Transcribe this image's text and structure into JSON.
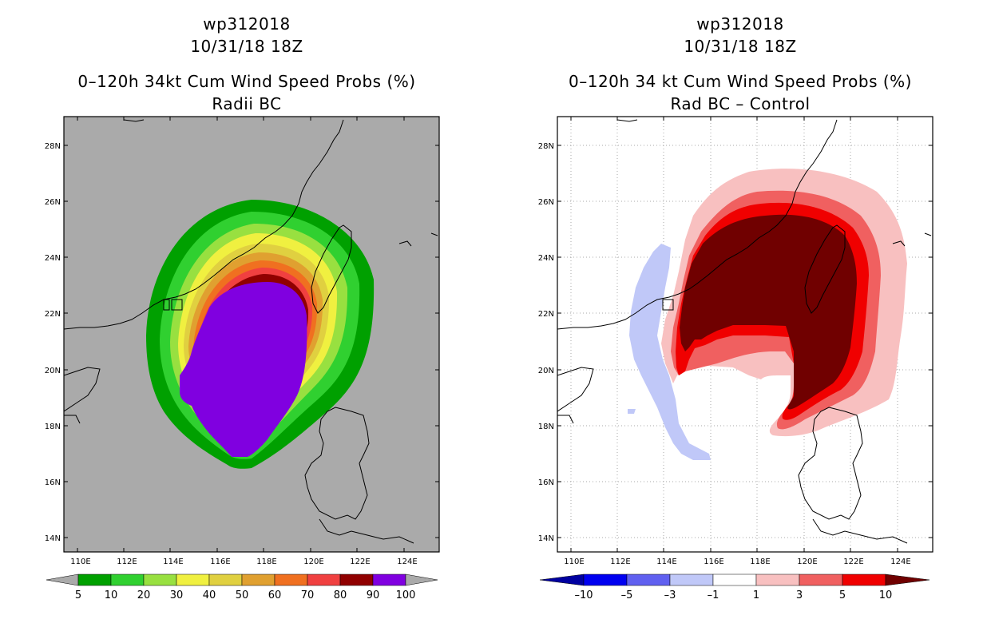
{
  "left_panel": {
    "storm_id": "wp312018",
    "datetime": "10/31/18 18Z",
    "product_title": "0–120h 34kt Cum Wind Speed Probs (%)",
    "subtitle": "Radii BC",
    "colorbar_labels": [
      "5",
      "10",
      "20",
      "30",
      "40",
      "50",
      "60",
      "70",
      "80",
      "90",
      "100"
    ],
    "colorbar_colors": [
      "#00a000",
      "#30d030",
      "#98e040",
      "#f0f040",
      "#e0d040",
      "#e0a030",
      "#f07020",
      "#f04040",
      "#900000",
      "#8000e0"
    ]
  },
  "right_panel": {
    "storm_id": "wp312018",
    "datetime": "10/31/18 18Z",
    "product_title": "0–120h 34 kt Cum Wind Speed Probs (%)",
    "subtitle": "Rad BC – Control",
    "colorbar_labels": [
      "–10",
      "–5",
      "–3",
      "–1",
      "1",
      "3",
      "5",
      "10"
    ],
    "colorbar_colors": [
      "#0000a0",
      "#0000f0",
      "#6060f0",
      "#c0c8f8",
      "#ffffff",
      "#f8c0c0",
      "#f06060",
      "#f00000",
      "#700000"
    ]
  },
  "axes": {
    "x_ticks": [
      "110E",
      "112E",
      "114E",
      "116E",
      "118E",
      "120E",
      "122E",
      "124E"
    ],
    "y_ticks": [
      "28N",
      "26N",
      "24N",
      "22N",
      "20N",
      "18N",
      "16N",
      "14N"
    ]
  },
  "colors": {
    "land_background_left": "#aaaaaa",
    "prob_green_dark": "#00a000",
    "prob_purple": "#8000e0",
    "diff_dark_red": "#700000",
    "diff_light_blue": "#c0c8f8"
  }
}
